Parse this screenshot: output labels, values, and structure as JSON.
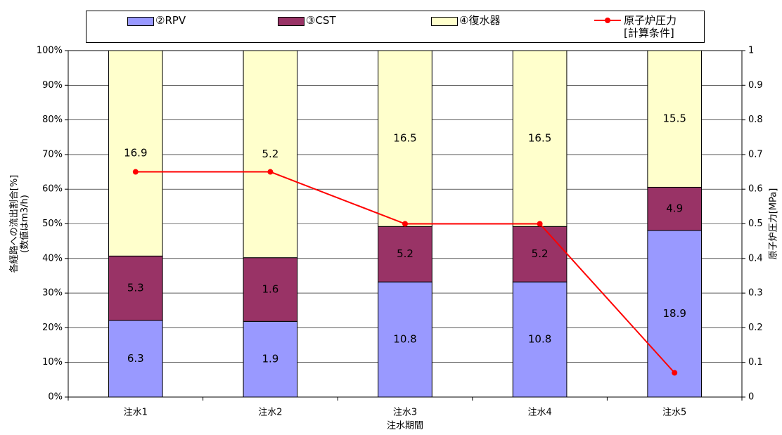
{
  "chart_data": {
    "type": "bar",
    "stacking": "percent",
    "categories": [
      "注水1",
      "注水2",
      "注水3",
      "注水4",
      "注水5"
    ],
    "series": [
      {
        "name": "②RPV",
        "color": "#9999ff",
        "values": [
          6.3,
          1.9,
          10.8,
          10.8,
          18.9
        ]
      },
      {
        "name": "③CST",
        "color": "#993366",
        "values": [
          5.3,
          1.6,
          5.2,
          5.2,
          4.9
        ]
      },
      {
        "name": "④復水器",
        "color": "#ffffcc",
        "values": [
          16.9,
          5.2,
          16.5,
          16.5,
          15.5
        ]
      },
      {
        "name": "原子炉圧力\n[計算条件]",
        "type": "line",
        "axis": "y2",
        "color": "#ff0000",
        "values": [
          0.65,
          0.65,
          0.5,
          0.5,
          0.07
        ]
      }
    ],
    "xlabel": "注水期間",
    "ylabel": [
      "各経路への流出割合[%]",
      "(数値はm3/h)"
    ],
    "y2label": "原子炉圧力[MPa]",
    "ylim": [
      0,
      100
    ],
    "yticks": [
      {
        "value": 0,
        "label": "0%"
      },
      {
        "value": 10,
        "label": "10%"
      },
      {
        "value": 20,
        "label": "20%"
      },
      {
        "value": 30,
        "label": "30%"
      },
      {
        "value": 40,
        "label": "40%"
      },
      {
        "value": 50,
        "label": "50%"
      },
      {
        "value": 60,
        "label": "60%"
      },
      {
        "value": 70,
        "label": "70%"
      },
      {
        "value": 80,
        "label": "80%"
      },
      {
        "value": 90,
        "label": "90%"
      },
      {
        "value": 100,
        "label": "100%"
      }
    ],
    "y2lim": [
      0,
      1
    ],
    "y2ticks": [
      0,
      0.1,
      0.2,
      0.3,
      0.4,
      0.5,
      0.6,
      0.7,
      0.8,
      0.9,
      1
    ],
    "grid": true
  }
}
